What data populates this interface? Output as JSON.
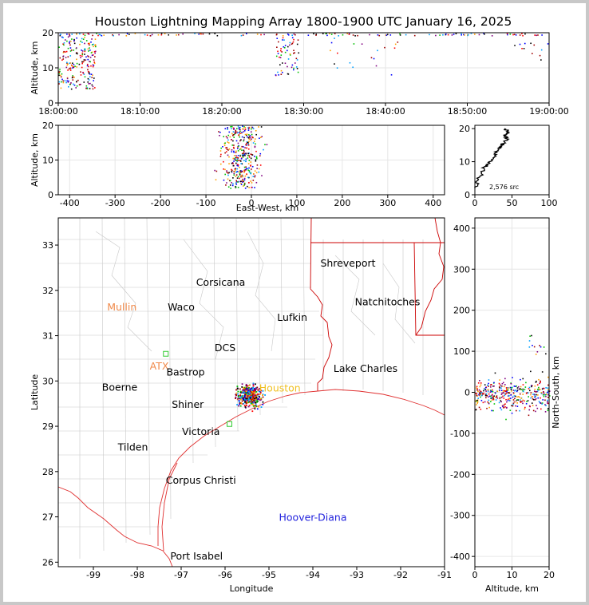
{
  "page_title": "Houston Lightning Mapping Array 1800-1900 UTC January 16, 2025",
  "colors": {
    "border": "#c8c8c8",
    "grid": "#e6e6e6",
    "coast_red": "#e03030",
    "county_gray": "#c0c0c0",
    "station_orange": "#f08a4b",
    "station_yellow": "#f0c020",
    "station_green": "#33cc33",
    "station_blue": "#2222dd",
    "source_palette": [
      "#0000ff",
      "#00a0ff",
      "#00c000",
      "#ff0000",
      "#000000",
      "#800080",
      "#ffa000",
      "#a00000"
    ]
  },
  "chart_data": [
    {
      "id": "time-altitude",
      "type": "scatter",
      "ylabel": "Altitude, km",
      "xlim": [
        "18:00:00",
        "19:00:00"
      ],
      "ylim": [
        0,
        20
      ],
      "x_ticks": [
        "18:00:00",
        "18:10:00",
        "18:20:00",
        "18:30:00",
        "18:40:00",
        "18:50:00",
        "19:00:00"
      ],
      "y_ticks": [
        0,
        10,
        20
      ],
      "clusters": [
        {
          "t0": 0,
          "t1": 4.5,
          "z0": 4,
          "z1": 20,
          "n": 220
        },
        {
          "t0": 26.5,
          "t1": 29.5,
          "z0": 8,
          "z1": 20,
          "n": 60
        },
        {
          "t0": 33,
          "t1": 42,
          "z0": 8,
          "z1": 20,
          "n": 22
        },
        {
          "t0": 55,
          "t1": 60,
          "z0": 12,
          "z1": 20,
          "n": 14
        },
        {
          "t0": 0,
          "t1": 60,
          "z0": 19.3,
          "z1": 20,
          "n": 120
        }
      ]
    },
    {
      "id": "east-west-altitude",
      "type": "scatter",
      "xlabel": "East-West, km",
      "ylabel": "Altitude, km",
      "xlim": [
        -425,
        425
      ],
      "ylim": [
        0,
        20
      ],
      "x_ticks": [
        -400,
        -300,
        -200,
        -100,
        0,
        100,
        200,
        300,
        400
      ],
      "y_ticks": [
        0,
        10,
        20
      ],
      "clusters": [
        {
          "x0": -100,
          "x1": 50,
          "z0": 2,
          "z1": 20,
          "n": 380
        }
      ]
    },
    {
      "id": "altitude-histogram",
      "type": "line",
      "xlim": [
        0,
        100
      ],
      "ylim": [
        0,
        21
      ],
      "x_ticks": [
        0,
        50,
        100
      ],
      "y_ticks": [
        0,
        10,
        20
      ],
      "annotation": "2,576 src",
      "profile": [
        [
          0.5,
          2
        ],
        [
          3,
          4
        ],
        [
          8,
          6
        ],
        [
          12,
          8
        ],
        [
          16,
          9
        ],
        [
          20,
          10
        ],
        [
          24,
          11
        ],
        [
          27,
          12
        ],
        [
          30,
          13
        ],
        [
          33,
          14
        ],
        [
          36,
          15
        ],
        [
          40,
          16
        ],
        [
          43,
          17
        ],
        [
          40,
          18
        ],
        [
          45,
          19
        ],
        [
          40,
          20
        ]
      ]
    },
    {
      "id": "plan-view",
      "type": "scatter",
      "xlabel": "Longitude",
      "ylabel": "Latitude",
      "xlim": [
        -99.8,
        -91
      ],
      "ylim": [
        25.9,
        33.6
      ],
      "x_ticks": [
        -99,
        -98,
        -97,
        -96,
        -95,
        -94,
        -93,
        -92,
        -91
      ],
      "y_ticks": [
        26,
        27,
        28,
        29,
        30,
        31,
        32,
        33
      ],
      "clusters": [
        {
          "lon0": -95.9,
          "lon1": -95.0,
          "lat0": 29.3,
          "lat1": 30.1,
          "n": 400
        }
      ],
      "cities": [
        {
          "name": "Shreveport",
          "lon": -93.2,
          "lat": 32.6,
          "color": "#000000"
        },
        {
          "name": "Corsicana",
          "lon": -96.1,
          "lat": 32.17,
          "color": "#000000"
        },
        {
          "name": "Mullin",
          "lon": -98.35,
          "lat": 31.63,
          "color": "#f08a4b"
        },
        {
          "name": "Waco",
          "lon": -97.0,
          "lat": 31.63,
          "color": "#000000"
        },
        {
          "name": "Natchitoches",
          "lon": -92.3,
          "lat": 31.74,
          "color": "#000000"
        },
        {
          "name": "Lufkin",
          "lon": -94.47,
          "lat": 31.4,
          "color": "#000000"
        },
        {
          "name": "DCS",
          "lon": -96.0,
          "lat": 30.73,
          "color": "#000000"
        },
        {
          "name": "ATX",
          "lon": -97.5,
          "lat": 30.32,
          "color": "#f08a4b"
        },
        {
          "name": "Bastrop",
          "lon": -96.9,
          "lat": 30.19,
          "color": "#000000"
        },
        {
          "name": "Lake Charles",
          "lon": -92.8,
          "lat": 30.27,
          "color": "#000000"
        },
        {
          "name": "Boerne",
          "lon": -98.4,
          "lat": 29.86,
          "color": "#000000"
        },
        {
          "name": "Houston",
          "lon": -94.75,
          "lat": 29.84,
          "color": "#f0c020"
        },
        {
          "name": "Shiner",
          "lon": -96.85,
          "lat": 29.48,
          "color": "#000000"
        },
        {
          "name": "Victoria",
          "lon": -96.55,
          "lat": 28.88,
          "color": "#000000"
        },
        {
          "name": "Tilden",
          "lon": -98.1,
          "lat": 28.53,
          "color": "#000000"
        },
        {
          "name": "Corpus Christi",
          "lon": -96.55,
          "lat": 27.8,
          "color": "#000000"
        },
        {
          "name": "Hoover-Diana",
          "lon": -94.0,
          "lat": 26.98,
          "color": "#2222dd"
        },
        {
          "name": "Port Isabel",
          "lon": -96.65,
          "lat": 26.13,
          "color": "#000000"
        }
      ],
      "stations": [
        {
          "lon": -97.35,
          "lat": 30.6,
          "color": "#33cc33"
        },
        {
          "lon": -95.9,
          "lat": 29.05,
          "color": "#33cc33"
        }
      ]
    },
    {
      "id": "altitude-north-south",
      "type": "scatter",
      "xlabel": "Altitude, km",
      "ylabel": "North-South, km",
      "xlim": [
        0,
        20
      ],
      "ylim": [
        -425,
        425
      ],
      "x_ticks": [
        0,
        10,
        20
      ],
      "y_ticks": [
        -400,
        -300,
        -200,
        -100,
        0,
        100,
        200,
        300,
        400
      ],
      "clusters": [
        {
          "z0": 0,
          "z1": 20,
          "y0": -70,
          "y1": 60,
          "n": 380
        },
        {
          "z0": 14,
          "z1": 20,
          "y0": 60,
          "y1": 180,
          "n": 12
        }
      ]
    }
  ]
}
